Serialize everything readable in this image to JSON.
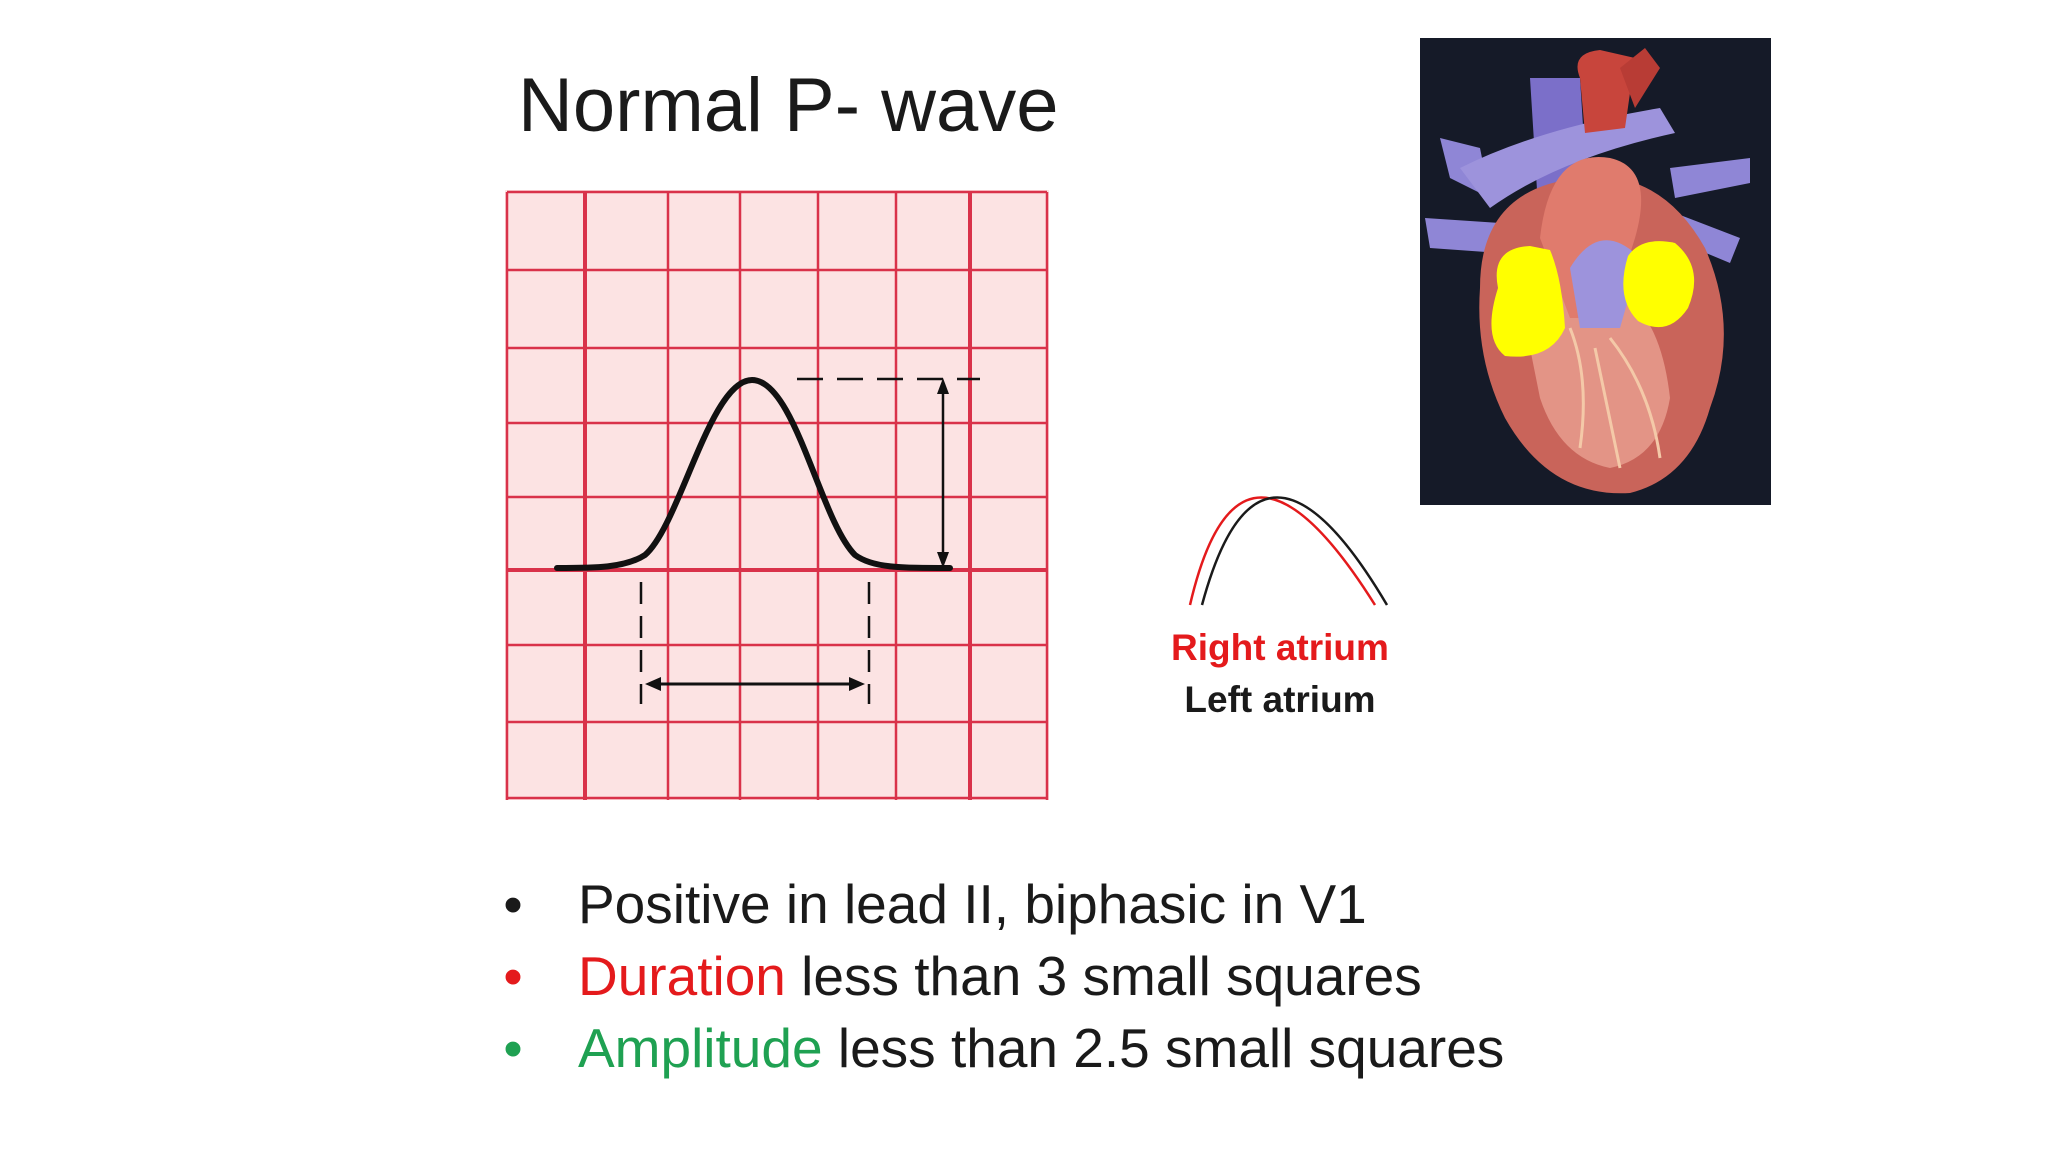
{
  "title": "Normal P- wave",
  "legend": {
    "right_atrium": "Right atrium",
    "left_atrium": "Left atrium"
  },
  "bullets": [
    {
      "dot": "•",
      "highlight": "",
      "text": "Positive in lead II, biphasic in V1",
      "color": "#1a1a1a"
    },
    {
      "dot": "•",
      "highlight": "Duration",
      "text": " less than 3 small squares",
      "color": "#e41a1c"
    },
    {
      "dot": "•",
      "highlight": "Amplitude",
      "text": " less than 2.5 small squares",
      "color": "#1fa152"
    }
  ],
  "colors": {
    "grid": "#d9324a",
    "grid_background": "#fce3e3",
    "right_atrium": "#e41a1c",
    "left_atrium": "#1a1a1a",
    "duration": "#e41a1c",
    "amplitude": "#1fa152",
    "heart_background": "#151a28",
    "atria_highlight": "#ffff00"
  }
}
